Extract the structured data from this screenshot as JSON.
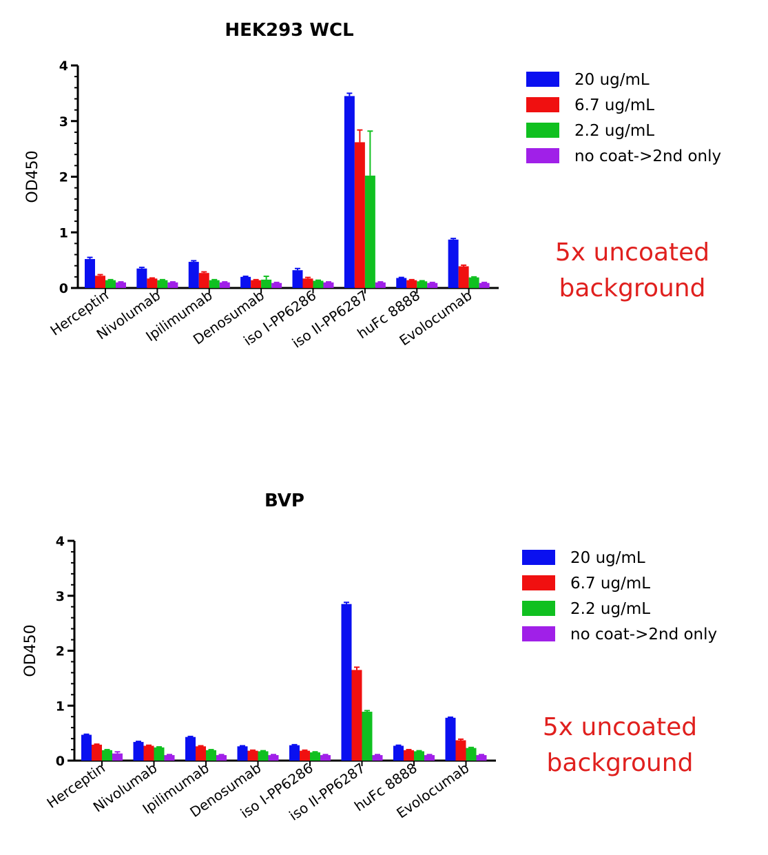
{
  "chart_data": [
    {
      "type": "bar",
      "title": "HEK293 WCL",
      "xlabel": "",
      "ylabel": "OD450",
      "ylim": [
        0,
        4
      ],
      "yticks": [
        0,
        1,
        2,
        3,
        4
      ],
      "categories": [
        "Herceptin",
        "Nivolumab",
        "Ipilimumab",
        "Denosumab",
        "iso I-PP6286",
        "iso II-PP6287",
        "huFc 8888",
        "Evolocumab"
      ],
      "series": [
        {
          "name": "20 ug/mL",
          "color": "#0a10f0",
          "values": [
            0.52,
            0.35,
            0.47,
            0.2,
            0.32,
            3.45,
            0.18,
            0.87
          ],
          "errors": [
            0.03,
            0.02,
            0.02,
            0.01,
            0.03,
            0.05,
            0.01,
            0.02
          ]
        },
        {
          "name": "6.7 ug/mL",
          "color": "#f01010",
          "values": [
            0.22,
            0.17,
            0.27,
            0.14,
            0.17,
            2.62,
            0.14,
            0.39
          ],
          "errors": [
            0.02,
            0.01,
            0.02,
            0.01,
            0.02,
            0.22,
            0.01,
            0.02
          ]
        },
        {
          "name": "2.2 ug/mL",
          "color": "#10c020",
          "values": [
            0.14,
            0.14,
            0.14,
            0.15,
            0.13,
            2.02,
            0.12,
            0.19
          ],
          "errors": [
            0.01,
            0.01,
            0.01,
            0.06,
            0.01,
            0.8,
            0.01,
            0.01
          ]
        },
        {
          "name": "no coat->2nd only",
          "color": "#a020e8",
          "values": [
            0.1,
            0.1,
            0.1,
            0.09,
            0.1,
            0.1,
            0.09,
            0.09
          ],
          "errors": [
            0.01,
            0.01,
            0.01,
            0.01,
            0.01,
            0.01,
            0.01,
            0.01
          ]
        }
      ],
      "legend_position": "right",
      "grid": false,
      "annotation": [
        "5x uncoated",
        "background"
      ]
    },
    {
      "type": "bar",
      "title": "BVP",
      "xlabel": "",
      "ylabel": "OD450",
      "ylim": [
        0,
        4
      ],
      "yticks": [
        0,
        1,
        2,
        3,
        4
      ],
      "categories": [
        "Herceptin",
        "Nivolumab",
        "Ipilimumab",
        "Denosumab",
        "iso I-PP6286",
        "iso II-PP6287",
        "huFc 8888",
        "Evolocumab"
      ],
      "series": [
        {
          "name": "20 ug/mL",
          "color": "#0a10f0",
          "values": [
            0.47,
            0.34,
            0.43,
            0.26,
            0.28,
            2.85,
            0.27,
            0.78
          ],
          "errors": [
            0.01,
            0.01,
            0.01,
            0.01,
            0.01,
            0.03,
            0.01,
            0.01
          ]
        },
        {
          "name": "6.7 ug/mL",
          "color": "#f01010",
          "values": [
            0.29,
            0.27,
            0.26,
            0.18,
            0.18,
            1.65,
            0.19,
            0.37
          ],
          "errors": [
            0.01,
            0.01,
            0.01,
            0.01,
            0.01,
            0.05,
            0.01,
            0.02
          ]
        },
        {
          "name": "2.2 ug/mL",
          "color": "#10c020",
          "values": [
            0.19,
            0.24,
            0.19,
            0.17,
            0.15,
            0.89,
            0.17,
            0.23
          ],
          "errors": [
            0.01,
            0.01,
            0.01,
            0.01,
            0.01,
            0.02,
            0.01,
            0.01
          ]
        },
        {
          "name": "no coat->2nd only",
          "color": "#a020e8",
          "values": [
            0.13,
            0.1,
            0.1,
            0.1,
            0.1,
            0.1,
            0.1,
            0.1
          ],
          "errors": [
            0.03,
            0.01,
            0.01,
            0.01,
            0.01,
            0.01,
            0.01,
            0.01
          ]
        }
      ],
      "legend_position": "right",
      "grid": false,
      "annotation": [
        "5x uncoated",
        "background"
      ]
    }
  ]
}
